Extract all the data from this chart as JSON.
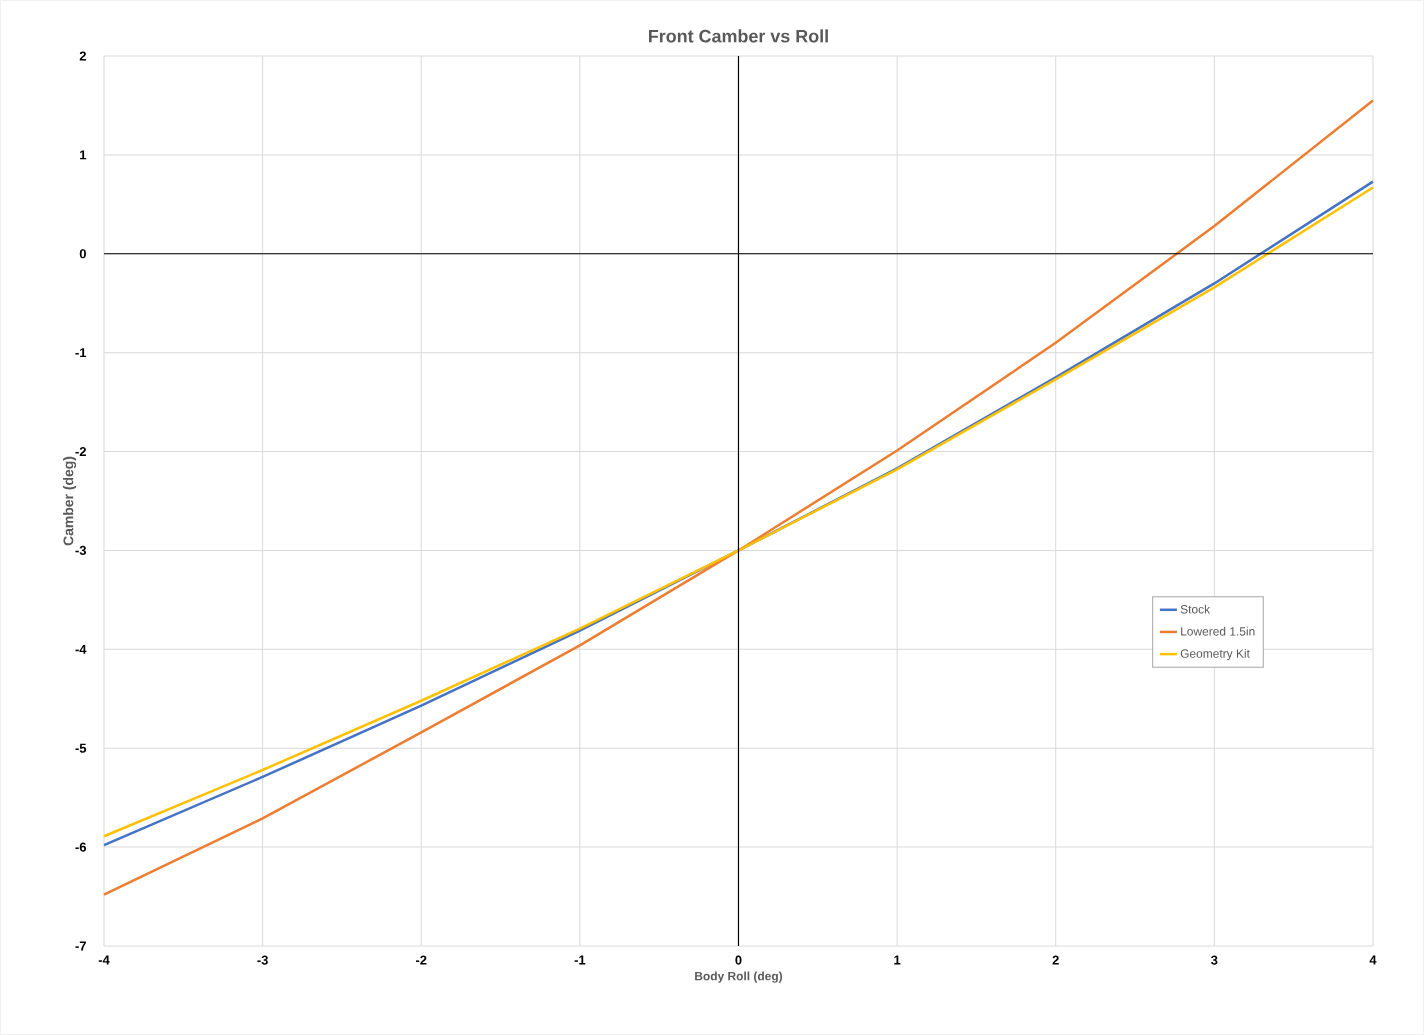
{
  "chart_data": {
    "type": "line",
    "title": "Front Camber vs Roll",
    "xlabel": "Body Roll (deg)",
    "ylabel": "Camber (deg)",
    "x": [
      -4,
      -3,
      -2,
      -1,
      0,
      1,
      2,
      3,
      4
    ],
    "series": [
      {
        "name": "Stock",
        "color": "#4472c4",
        "values": [
          -5.98,
          -5.29,
          -4.57,
          -3.81,
          -3,
          -2.17,
          -1.25,
          -0.3,
          0.73
        ]
      },
      {
        "name": "Lowered 1.5in",
        "color": "#ed7d31",
        "values": [
          -6.48,
          -5.71,
          -4.84,
          -3.96,
          -3,
          -1.99,
          -0.9,
          0.28,
          1.55
        ]
      },
      {
        "name": "Geometry Kit",
        "color": "#ffc000",
        "values": [
          -5.89,
          -5.22,
          -4.52,
          -3.79,
          -3,
          -2.18,
          -1.27,
          -0.34,
          0.67
        ]
      }
    ],
    "xlim": [
      -4,
      4
    ],
    "ylim": [
      -7,
      2
    ],
    "xticks": [
      -4,
      -3,
      -2,
      -1,
      0,
      1,
      2,
      3,
      4
    ],
    "yticks": [
      -7,
      -6,
      -5,
      -4,
      -3,
      -2,
      -1,
      0,
      1,
      2
    ],
    "grid": true,
    "legend": "right",
    "marker": "none",
    "line_style": "solid"
  }
}
